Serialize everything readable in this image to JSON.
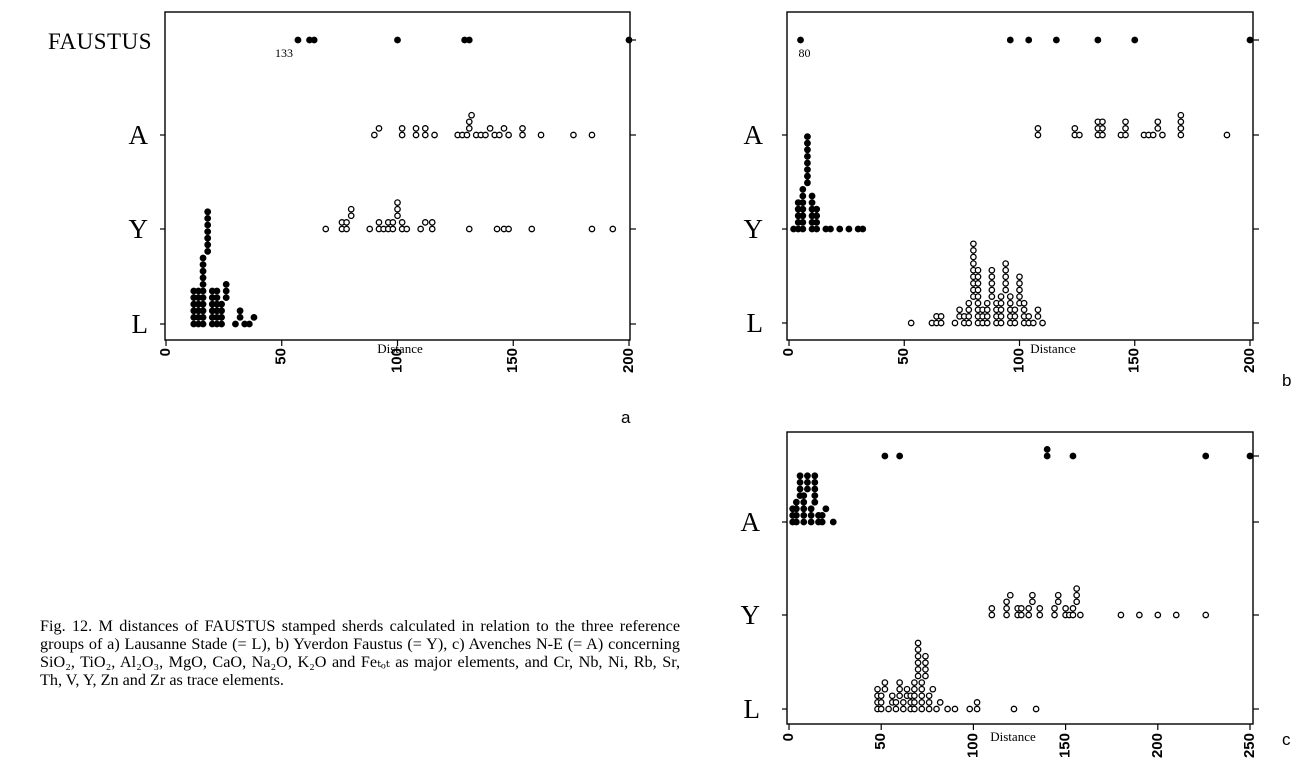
{
  "chart_data": [
    {
      "type": "scatter",
      "panel": "a",
      "xlabel": "Distance",
      "xlim": [
        0,
        200
      ],
      "xticks": [
        0,
        50,
        100,
        150,
        200
      ],
      "categories": [
        "L",
        "Y",
        "A",
        "FAUSTUS"
      ],
      "category_labels": [
        "L",
        "Y",
        "A",
        "FAUSTUS"
      ],
      "annotations": [
        {
          "text": "133",
          "category": "FAUSTUS",
          "x": 57
        }
      ],
      "series": [
        {
          "category": "L",
          "marker": "filled",
          "x": [
            12,
            12,
            12,
            12,
            12,
            12,
            14,
            14,
            14,
            14,
            14,
            14,
            16,
            16,
            16,
            16,
            16,
            16,
            16,
            16,
            16,
            16,
            16,
            18,
            18,
            18,
            18,
            18,
            18,
            18,
            20,
            20,
            20,
            20,
            20,
            20,
            22,
            22,
            22,
            22,
            22,
            22,
            24,
            24,
            24,
            24,
            26,
            26,
            26,
            30,
            32,
            32,
            34,
            36,
            38
          ]
        },
        {
          "category": "Y",
          "marker": "open",
          "x": [
            69,
            76,
            76,
            78,
            78,
            80,
            80,
            88,
            92,
            92,
            94,
            96,
            96,
            98,
            98,
            100,
            100,
            100,
            102,
            102,
            104,
            110,
            112,
            115,
            115,
            131,
            143,
            146,
            148,
            158,
            184,
            193
          ]
        },
        {
          "category": "A",
          "marker": "open",
          "x": [
            90,
            92,
            102,
            102,
            108,
            108,
            112,
            112,
            116,
            126,
            128,
            130,
            131,
            131,
            132,
            134,
            136,
            138,
            140,
            142,
            144,
            146,
            148,
            154,
            154,
            162,
            176,
            184
          ]
        },
        {
          "category": "FAUSTUS",
          "marker": "filled",
          "x": [
            57,
            62,
            64,
            100,
            129,
            131,
            200
          ]
        }
      ]
    },
    {
      "type": "scatter",
      "panel": "b",
      "xlabel": "Distance",
      "xlim": [
        0,
        200
      ],
      "xticks": [
        0,
        50,
        100,
        150,
        200
      ],
      "categories": [
        "L",
        "Y",
        "A",
        "FAUSTUS"
      ],
      "category_labels": [
        "L",
        "Y",
        "A"
      ],
      "annotations": [
        {
          "text": "80",
          "category": "FAUSTUS",
          "x": 5
        }
      ],
      "series": [
        {
          "category": "L",
          "marker": "open",
          "x": [
            53,
            62,
            64,
            64,
            66,
            66,
            72,
            74,
            74,
            76,
            76,
            78,
            78,
            78,
            78,
            80,
            80,
            80,
            80,
            80,
            80,
            80,
            80,
            80,
            82,
            82,
            82,
            82,
            82,
            82,
            82,
            82,
            82,
            84,
            84,
            84,
            86,
            86,
            86,
            86,
            88,
            88,
            88,
            88,
            88,
            90,
            90,
            90,
            90,
            92,
            92,
            92,
            92,
            92,
            94,
            94,
            94,
            94,
            94,
            96,
            96,
            96,
            96,
            96,
            98,
            98,
            98,
            100,
            100,
            100,
            100,
            100,
            102,
            102,
            102,
            102,
            104,
            104,
            106,
            108,
            108,
            110
          ]
        },
        {
          "category": "Y",
          "marker": "filled",
          "x": [
            2,
            4,
            4,
            4,
            4,
            4,
            6,
            6,
            6,
            6,
            6,
            6,
            6,
            8,
            8,
            8,
            8,
            8,
            8,
            8,
            8,
            10,
            10,
            10,
            10,
            10,
            10,
            12,
            12,
            12,
            12,
            16,
            18,
            22,
            26,
            30,
            32
          ]
        },
        {
          "category": "A",
          "marker": "open",
          "x": [
            108,
            108,
            124,
            124,
            126,
            134,
            134,
            134,
            136,
            136,
            136,
            144,
            146,
            146,
            146,
            154,
            156,
            158,
            160,
            160,
            162,
            170,
            170,
            170,
            170,
            190
          ]
        },
        {
          "category": "FAUSTUS",
          "marker": "filled",
          "x": [
            5,
            96,
            104,
            116,
            134,
            150,
            200
          ]
        }
      ]
    },
    {
      "type": "scatter",
      "panel": "c",
      "xlabel": "Distance",
      "xlim": [
        0,
        250
      ],
      "xticks": [
        0,
        50,
        100,
        150,
        200,
        250
      ],
      "categories": [
        "L",
        "Y",
        "A",
        "FAUSTUS"
      ],
      "category_labels": [
        "L",
        "Y",
        "A"
      ],
      "annotations": [],
      "series": [
        {
          "category": "L",
          "marker": "open",
          "x": [
            48,
            48,
            48,
            48,
            50,
            50,
            50,
            52,
            52,
            54,
            56,
            56,
            58,
            58,
            60,
            60,
            60,
            62,
            62,
            64,
            64,
            66,
            66,
            66,
            68,
            68,
            68,
            68,
            68,
            70,
            70,
            70,
            70,
            70,
            70,
            72,
            72,
            72,
            72,
            72,
            74,
            74,
            74,
            74,
            76,
            76,
            76,
            78,
            80,
            82,
            86,
            90,
            98,
            102,
            102,
            122,
            134
          ]
        },
        {
          "category": "Y",
          "marker": "open",
          "x": [
            110,
            110,
            118,
            118,
            118,
            120,
            124,
            124,
            126,
            126,
            130,
            130,
            132,
            132,
            136,
            136,
            144,
            144,
            146,
            146,
            150,
            150,
            152,
            154,
            154,
            156,
            156,
            156,
            158,
            180,
            190,
            200,
            210,
            226
          ]
        },
        {
          "category": "A",
          "marker": "filled",
          "x": [
            2,
            2,
            2,
            4,
            4,
            4,
            4,
            6,
            6,
            6,
            6,
            8,
            8,
            8,
            8,
            8,
            10,
            10,
            10,
            12,
            12,
            12,
            14,
            14,
            14,
            14,
            14,
            16,
            16,
            18,
            18,
            20,
            24
          ]
        },
        {
          "category": "FAUSTUS",
          "marker": "filled",
          "x": [
            52,
            60,
            140,
            140,
            154,
            226,
            250
          ]
        }
      ]
    }
  ],
  "caption": "Fig. 12. M distances of FAUSTUS stamped sherds calculated in relation to the three reference groups of a) Lausanne Stade (= L), b) Yverdon Faustus (= Y), c) Avenches N-E (= A) concerning SiO₂, TiO₂, Al₂O₃, MgO, CaO, Na₂O, K₂O and Feₜₒₜ as major elements, and Cr, Nb, Ni, Rb, Sr, Th, V, Y, Zn and Zr as trace elements."
}
